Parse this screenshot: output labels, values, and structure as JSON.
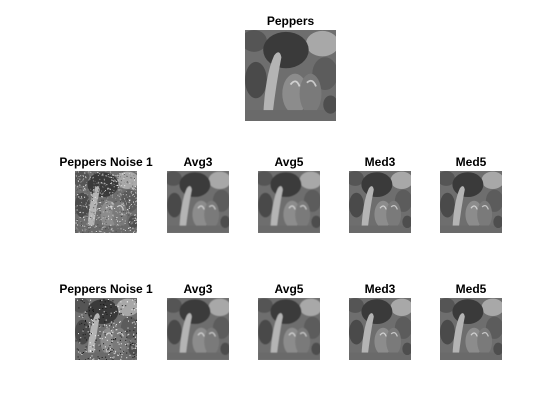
{
  "figure": {
    "top": {
      "title": "Peppers",
      "variant": "clean"
    },
    "rows": [
      [
        {
          "title": "Peppers Noise 1",
          "variant": "noisy1"
        },
        {
          "title": "Avg3",
          "variant": "smooth"
        },
        {
          "title": "Avg5",
          "variant": "smooth"
        },
        {
          "title": "Med3",
          "variant": "clean"
        },
        {
          "title": "Med5",
          "variant": "clean"
        }
      ],
      [
        {
          "title": "Peppers Noise 1",
          "variant": "noisy2"
        },
        {
          "title": "Avg3",
          "variant": "smooth"
        },
        {
          "title": "Avg5",
          "variant": "smooth"
        },
        {
          "title": "Med3",
          "variant": "clean"
        },
        {
          "title": "Med5",
          "variant": "clean"
        }
      ]
    ]
  }
}
